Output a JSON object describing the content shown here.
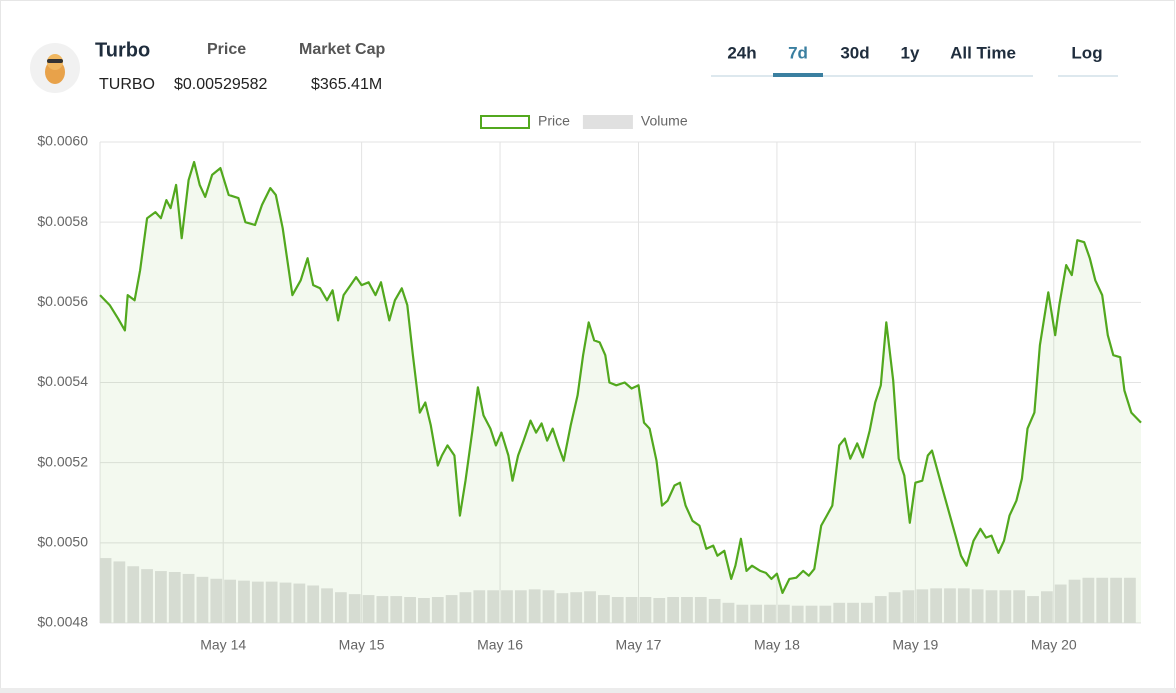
{
  "header": {
    "name": "Turbo",
    "symbol": "TURBO",
    "price_label": "Price",
    "price": "$0.00529582",
    "market_cap_label": "Market Cap",
    "market_cap": "$365.41M"
  },
  "tabs": [
    {
      "label": "24h"
    },
    {
      "label": "7d",
      "active": true
    },
    {
      "label": "30d"
    },
    {
      "label": "1y"
    },
    {
      "label": "All Time"
    }
  ],
  "log_button": "Log",
  "chart_data": {
    "type": "line",
    "grid": true,
    "legend": "top",
    "x": [
      13.11,
      13.18,
      13.24,
      13.29,
      13.31,
      13.36,
      13.4,
      13.45,
      13.51,
      13.55,
      13.59,
      13.62,
      13.66,
      13.7,
      13.75,
      13.79,
      13.83,
      13.87,
      13.92,
      13.98,
      14.04,
      14.11,
      14.16,
      14.23,
      14.28,
      14.34,
      14.38,
      14.43,
      14.5,
      14.56,
      14.61,
      14.65,
      14.7,
      14.75,
      14.79,
      14.83,
      14.87,
      14.92,
      14.96,
      15.0,
      15.05,
      15.1,
      15.14,
      15.2,
      15.24,
      15.29,
      15.33,
      15.37,
      15.42,
      15.46,
      15.5,
      15.55,
      15.58,
      15.62,
      15.67,
      15.71,
      15.75,
      15.8,
      15.84,
      15.88,
      15.93,
      15.97,
      16.01,
      16.06,
      16.09,
      16.13,
      16.17,
      16.22,
      16.26,
      16.3,
      16.34,
      16.38,
      16.42,
      16.46,
      16.51,
      16.56,
      16.6,
      16.64,
      16.68,
      16.72,
      16.76,
      16.79,
      16.84,
      16.9,
      16.95,
      17.0,
      17.04,
      17.08,
      17.13,
      17.17,
      17.21,
      17.26,
      17.3,
      17.34,
      17.39,
      17.44,
      17.49,
      17.54,
      17.57,
      17.62,
      17.67,
      17.7,
      17.74,
      17.78,
      17.82,
      17.88,
      17.92,
      17.96,
      18.0,
      18.04,
      18.09,
      18.14,
      18.19,
      18.23,
      18.27,
      18.32,
      18.36,
      18.4,
      18.45,
      18.49,
      18.53,
      18.58,
      18.62,
      18.67,
      18.71,
      18.75,
      18.79,
      18.84,
      18.88,
      18.92,
      18.96,
      19.0,
      19.05,
      19.09,
      19.12,
      19.16,
      19.2,
      19.24,
      19.29,
      19.33,
      19.37,
      19.42,
      19.47,
      19.51,
      19.55,
      19.6,
      19.64,
      19.68,
      19.73,
      19.77,
      19.81,
      19.86,
      19.9,
      19.96,
      20.01,
      20.04,
      20.09,
      20.13,
      20.17,
      20.22,
      20.26,
      20.3,
      20.35,
      20.39,
      20.43,
      20.48,
      20.51,
      20.56,
      20.63
    ],
    "xlim": [
      13.11,
      20.63
    ],
    "xticks": [
      {
        "value": 14,
        "label": "May 14"
      },
      {
        "value": 15,
        "label": "May 15"
      },
      {
        "value": 16,
        "label": "May 16"
      },
      {
        "value": 17,
        "label": "May 17"
      },
      {
        "value": 18,
        "label": "May 18"
      },
      {
        "value": 19,
        "label": "May 19"
      },
      {
        "value": 20,
        "label": "May 20"
      }
    ],
    "ylim": [
      0.0048,
      0.006
    ],
    "yticks": [
      {
        "value": 0.0048,
        "label": "$0.0048"
      },
      {
        "value": 0.005,
        "label": "$0.0050"
      },
      {
        "value": 0.0052,
        "label": "$0.0052"
      },
      {
        "value": 0.0054,
        "label": "$0.0054"
      },
      {
        "value": 0.0056,
        "label": "$0.0056"
      },
      {
        "value": 0.0058,
        "label": "$0.0058"
      },
      {
        "value": 0.006,
        "label": "$0.0060"
      }
    ],
    "y2lim": [
      0,
      100
    ],
    "series": [
      {
        "name": "Price",
        "color": "#52a81e",
        "values": [
          0.005618,
          0.005593,
          0.00556,
          0.00553,
          0.005618,
          0.005605,
          0.00568,
          0.00581,
          0.005825,
          0.00581,
          0.005855,
          0.005835,
          0.005893,
          0.00576,
          0.005905,
          0.00595,
          0.005893,
          0.005863,
          0.005918,
          0.005935,
          0.005868,
          0.00586,
          0.0058,
          0.005793,
          0.005843,
          0.005885,
          0.005868,
          0.005785,
          0.005618,
          0.005655,
          0.00571,
          0.005643,
          0.005635,
          0.005605,
          0.00563,
          0.005555,
          0.005618,
          0.005643,
          0.005663,
          0.005643,
          0.00565,
          0.005618,
          0.00565,
          0.005555,
          0.005605,
          0.005635,
          0.005593,
          0.005468,
          0.005325,
          0.00535,
          0.005293,
          0.005193,
          0.005218,
          0.005243,
          0.005218,
          0.005068,
          0.005155,
          0.00528,
          0.005388,
          0.005318,
          0.005285,
          0.005243,
          0.005275,
          0.005218,
          0.005155,
          0.005218,
          0.005255,
          0.005305,
          0.005275,
          0.005298,
          0.005255,
          0.005285,
          0.005243,
          0.005205,
          0.005293,
          0.005368,
          0.005468,
          0.00555,
          0.005505,
          0.0055,
          0.005468,
          0.0054,
          0.005393,
          0.0054,
          0.005385,
          0.005393,
          0.0053,
          0.005285,
          0.005205,
          0.005093,
          0.005105,
          0.005143,
          0.00515,
          0.005093,
          0.005055,
          0.005043,
          0.004985,
          0.004993,
          0.004968,
          0.00498,
          0.00491,
          0.004943,
          0.00501,
          0.00493,
          0.004943,
          0.00493,
          0.004925,
          0.00491,
          0.004923,
          0.004875,
          0.00491,
          0.004913,
          0.00493,
          0.004918,
          0.004935,
          0.005043,
          0.005068,
          0.005093,
          0.005243,
          0.00526,
          0.00521,
          0.005248,
          0.005213,
          0.00528,
          0.00535,
          0.005393,
          0.00555,
          0.005405,
          0.00521,
          0.005168,
          0.00505,
          0.00515,
          0.005155,
          0.005218,
          0.00523,
          0.00518,
          0.00513,
          0.00508,
          0.005018,
          0.004968,
          0.004943,
          0.005005,
          0.005035,
          0.005013,
          0.005018,
          0.004975,
          0.005005,
          0.005068,
          0.005105,
          0.00516,
          0.005285,
          0.005325,
          0.005493,
          0.005625,
          0.005518,
          0.005593,
          0.005693,
          0.005668,
          0.005755,
          0.00575,
          0.00571,
          0.005655,
          0.005618,
          0.005518,
          0.005468,
          0.005463,
          0.00538,
          0.005325,
          0.0053
        ]
      },
      {
        "name": "Volume",
        "color": "#e0e0e0",
        "axis": "y2",
        "x": [
          13.15,
          13.25,
          13.35,
          13.45,
          13.55,
          13.65,
          13.75,
          13.85,
          13.95,
          14.05,
          14.15,
          14.25,
          14.35,
          14.45,
          14.55,
          14.65,
          14.75,
          14.85,
          14.95,
          15.05,
          15.15,
          15.25,
          15.35,
          15.45,
          15.55,
          15.65,
          15.75,
          15.85,
          15.95,
          16.05,
          16.15,
          16.25,
          16.35,
          16.45,
          16.55,
          16.65,
          16.75,
          16.85,
          16.95,
          17.05,
          17.15,
          17.25,
          17.35,
          17.45,
          17.55,
          17.65,
          17.75,
          17.85,
          17.95,
          18.05,
          18.15,
          18.25,
          18.35,
          18.45,
          18.55,
          18.65,
          18.75,
          18.85,
          18.95,
          19.05,
          19.15,
          19.25,
          19.35,
          19.45,
          19.55,
          19.65,
          19.75,
          19.85,
          19.95,
          20.05,
          20.15,
          20.25,
          20.35,
          20.45,
          20.55
        ],
        "values": [
          13.5,
          12.8,
          11.8,
          11.2,
          10.8,
          10.6,
          10.2,
          9.6,
          9.2,
          9.0,
          8.8,
          8.6,
          8.6,
          8.4,
          8.2,
          7.8,
          7.2,
          6.4,
          6.0,
          5.8,
          5.6,
          5.6,
          5.4,
          5.2,
          5.4,
          5.8,
          6.4,
          6.8,
          6.8,
          6.8,
          6.8,
          7.0,
          6.8,
          6.2,
          6.4,
          6.6,
          5.8,
          5.4,
          5.4,
          5.4,
          5.2,
          5.4,
          5.4,
          5.4,
          5.0,
          4.2,
          3.8,
          3.8,
          3.8,
          3.8,
          3.6,
          3.6,
          3.6,
          4.2,
          4.2,
          4.2,
          5.6,
          6.4,
          6.8,
          7.0,
          7.2,
          7.2,
          7.2,
          7.0,
          6.8,
          6.8,
          6.8,
          5.6,
          6.6,
          8.0,
          9.0,
          9.4,
          9.4,
          9.4,
          9.4
        ]
      }
    ]
  }
}
